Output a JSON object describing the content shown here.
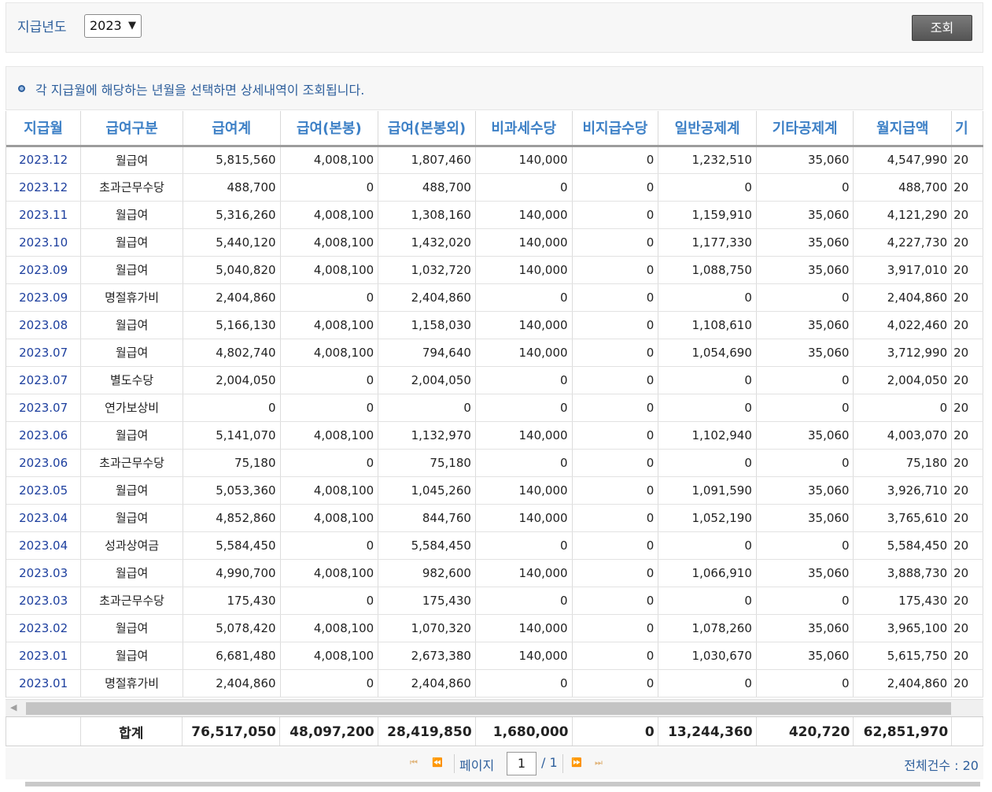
{
  "filter": {
    "label": "지급년도",
    "year_value": "2023",
    "search_label": "조회"
  },
  "notice": {
    "text": "각 지급월에 해당하는 년월을 선택하면 상세내역이 조회됩니다."
  },
  "table": {
    "columns": [
      "지급월",
      "급여구분",
      "급여계",
      "급여(본봉)",
      "급여(본봉외)",
      "비과세수당",
      "비지급수당",
      "일반공제계",
      "기타공제계",
      "월지급액",
      "기"
    ],
    "rows": [
      [
        "2023.12",
        "월급여",
        "5,815,560",
        "4,008,100",
        "1,807,460",
        "140,000",
        "0",
        "1,232,510",
        "35,060",
        "4,547,990",
        "20"
      ],
      [
        "2023.12",
        "초과근무수당",
        "488,700",
        "0",
        "488,700",
        "0",
        "0",
        "0",
        "0",
        "488,700",
        "20"
      ],
      [
        "2023.11",
        "월급여",
        "5,316,260",
        "4,008,100",
        "1,308,160",
        "140,000",
        "0",
        "1,159,910",
        "35,060",
        "4,121,290",
        "20"
      ],
      [
        "2023.10",
        "월급여",
        "5,440,120",
        "4,008,100",
        "1,432,020",
        "140,000",
        "0",
        "1,177,330",
        "35,060",
        "4,227,730",
        "20"
      ],
      [
        "2023.09",
        "월급여",
        "5,040,820",
        "4,008,100",
        "1,032,720",
        "140,000",
        "0",
        "1,088,750",
        "35,060",
        "3,917,010",
        "20"
      ],
      [
        "2023.09",
        "명절휴가비",
        "2,404,860",
        "0",
        "2,404,860",
        "0",
        "0",
        "0",
        "0",
        "2,404,860",
        "20"
      ],
      [
        "2023.08",
        "월급여",
        "5,166,130",
        "4,008,100",
        "1,158,030",
        "140,000",
        "0",
        "1,108,610",
        "35,060",
        "4,022,460",
        "20"
      ],
      [
        "2023.07",
        "월급여",
        "4,802,740",
        "4,008,100",
        "794,640",
        "140,000",
        "0",
        "1,054,690",
        "35,060",
        "3,712,990",
        "20"
      ],
      [
        "2023.07",
        "별도수당",
        "2,004,050",
        "0",
        "2,004,050",
        "0",
        "0",
        "0",
        "0",
        "2,004,050",
        "20"
      ],
      [
        "2023.07",
        "연가보상비",
        "0",
        "0",
        "0",
        "0",
        "0",
        "0",
        "0",
        "0",
        "20"
      ],
      [
        "2023.06",
        "월급여",
        "5,141,070",
        "4,008,100",
        "1,132,970",
        "140,000",
        "0",
        "1,102,940",
        "35,060",
        "4,003,070",
        "20"
      ],
      [
        "2023.06",
        "초과근무수당",
        "75,180",
        "0",
        "75,180",
        "0",
        "0",
        "0",
        "0",
        "75,180",
        "20"
      ],
      [
        "2023.05",
        "월급여",
        "5,053,360",
        "4,008,100",
        "1,045,260",
        "140,000",
        "0",
        "1,091,590",
        "35,060",
        "3,926,710",
        "20"
      ],
      [
        "2023.04",
        "월급여",
        "4,852,860",
        "4,008,100",
        "844,760",
        "140,000",
        "0",
        "1,052,190",
        "35,060",
        "3,765,610",
        "20"
      ],
      [
        "2023.04",
        "성과상여금",
        "5,584,450",
        "0",
        "5,584,450",
        "0",
        "0",
        "0",
        "0",
        "5,584,450",
        "20"
      ],
      [
        "2023.03",
        "월급여",
        "4,990,700",
        "4,008,100",
        "982,600",
        "140,000",
        "0",
        "1,066,910",
        "35,060",
        "3,888,730",
        "20"
      ],
      [
        "2023.03",
        "초과근무수당",
        "175,430",
        "0",
        "175,430",
        "0",
        "0",
        "0",
        "0",
        "175,430",
        "20"
      ],
      [
        "2023.02",
        "월급여",
        "5,078,420",
        "4,008,100",
        "1,070,320",
        "140,000",
        "0",
        "1,078,260",
        "35,060",
        "3,965,100",
        "20"
      ],
      [
        "2023.01",
        "월급여",
        "6,681,480",
        "4,008,100",
        "2,673,380",
        "140,000",
        "0",
        "1,030,670",
        "35,060",
        "5,615,750",
        "20"
      ],
      [
        "2023.01",
        "명절휴가비",
        "2,404,860",
        "0",
        "2,404,860",
        "0",
        "0",
        "0",
        "0",
        "2,404,860",
        "20"
      ]
    ]
  },
  "totals": {
    "label": "합계",
    "values": [
      "76,517,050",
      "48,097,200",
      "28,419,850",
      "1,680,000",
      "0",
      "13,244,360",
      "420,720",
      "62,851,970"
    ]
  },
  "pager": {
    "page_label": "페이지",
    "current_page": "1",
    "total_pages": "/ 1",
    "count_text": "전체건수 : 20"
  },
  "icons": {
    "select": "chevron-down-icon",
    "notice": "bullet-icon",
    "scroll_left": "arrow-left-icon",
    "pager": [
      "first-page-icon",
      "prev-page-icon",
      "next-page-icon",
      "last-page-icon"
    ]
  },
  "colors": {
    "accent_blue": "#3d80c6",
    "link_blue": "#1d3f9e",
    "label_blue": "#2e5f9c",
    "button_gray": "#5f5f5f"
  }
}
